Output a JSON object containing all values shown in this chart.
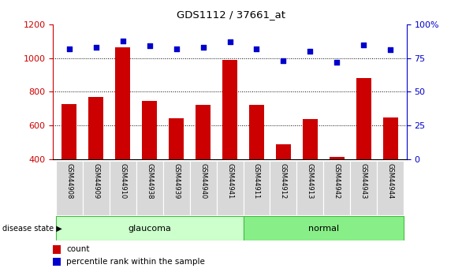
{
  "title": "GDS1112 / 37661_at",
  "samples": [
    "GSM44908",
    "GSM44909",
    "GSM44910",
    "GSM44938",
    "GSM44939",
    "GSM44940",
    "GSM44941",
    "GSM44911",
    "GSM44912",
    "GSM44913",
    "GSM44942",
    "GSM44943",
    "GSM44944"
  ],
  "counts": [
    725,
    770,
    1065,
    748,
    643,
    722,
    990,
    722,
    487,
    638,
    413,
    880,
    648
  ],
  "percentiles": [
    82,
    83,
    88,
    84,
    82,
    83,
    87,
    82,
    73,
    80,
    72,
    85,
    81
  ],
  "groups": [
    "glaucoma",
    "glaucoma",
    "glaucoma",
    "glaucoma",
    "glaucoma",
    "glaucoma",
    "glaucoma",
    "normal",
    "normal",
    "normal",
    "normal",
    "normal",
    "normal"
  ],
  "glaucoma_color": "#ccffcc",
  "normal_color": "#88ee88",
  "bar_color": "#cc0000",
  "dot_color": "#0000cc",
  "ylim_left": [
    400,
    1200
  ],
  "ylim_right": [
    0,
    100
  ],
  "left_tick_color": "#cc0000",
  "right_tick_color": "#0000cc",
  "yticks_left": [
    400,
    600,
    800,
    1000,
    1200
  ],
  "yticks_right": [
    0,
    25,
    50,
    75,
    100
  ],
  "grid_values": [
    600,
    800,
    1000
  ],
  "legend_count_label": "count",
  "legend_pct_label": "percentile rank within the sample",
  "disease_state_label": "disease state"
}
